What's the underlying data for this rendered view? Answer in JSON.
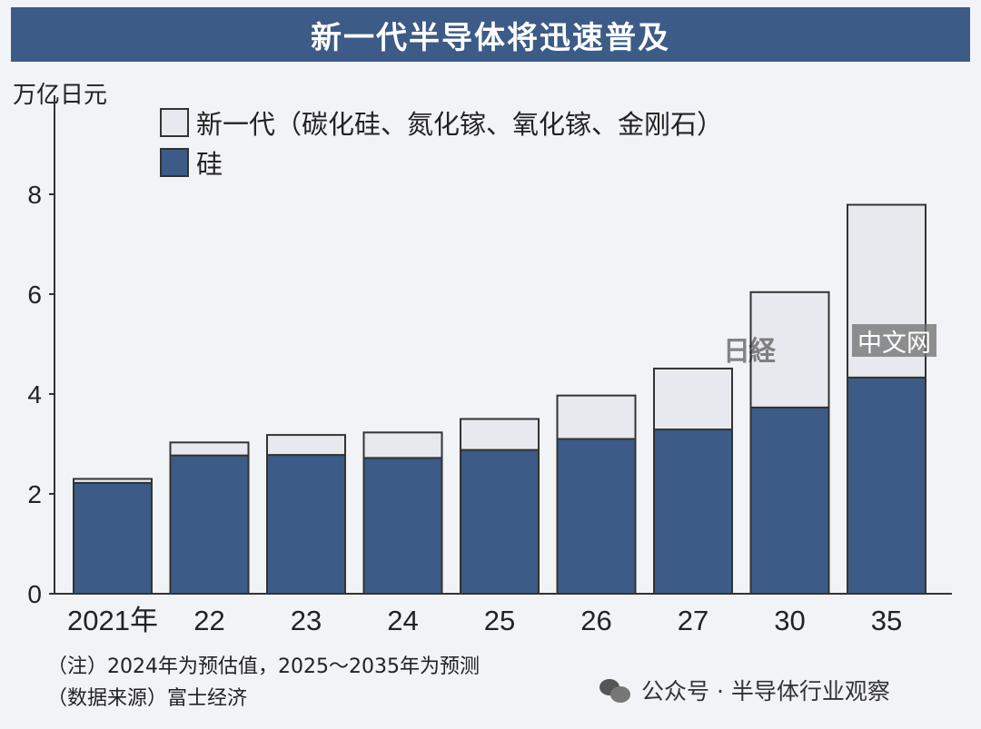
{
  "title": "新一代半导体将迅速普及",
  "watermark": {
    "logo": "日経",
    "text": "中文网"
  },
  "footer": {
    "note": "（注）2024年为预估值，2025〜2035年为预测",
    "source": "（数据来源）富士经济",
    "account": "公众号 · 半导体行业观察"
  },
  "colors": {
    "silicon": "#3c5b86",
    "next_gen": "#e8e9ee",
    "title_bg": "#3c5b86"
  },
  "chart_data": {
    "type": "bar",
    "stacked": true,
    "title": "新一代半导体将迅速普及",
    "ylabel": "万亿日元",
    "xlabel": "",
    "ylim": [
      0,
      8
    ],
    "yticks": [
      0,
      2,
      4,
      6,
      8
    ],
    "categories": [
      "2021年",
      "22",
      "23",
      "24",
      "25",
      "26",
      "27",
      "30",
      "35"
    ],
    "series": [
      {
        "name": "硅",
        "color": "#3c5b86",
        "values": [
          2.22,
          2.77,
          2.78,
          2.72,
          2.88,
          3.1,
          3.29,
          3.73,
          4.33
        ]
      },
      {
        "name": "新一代（碳化硅、氮化镓、氧化镓、金刚石）",
        "color": "#e8e9ee",
        "values": [
          0.08,
          0.26,
          0.4,
          0.51,
          0.62,
          0.87,
          1.22,
          2.31,
          3.46
        ]
      }
    ],
    "legend_position": "top-left",
    "grid": false
  }
}
